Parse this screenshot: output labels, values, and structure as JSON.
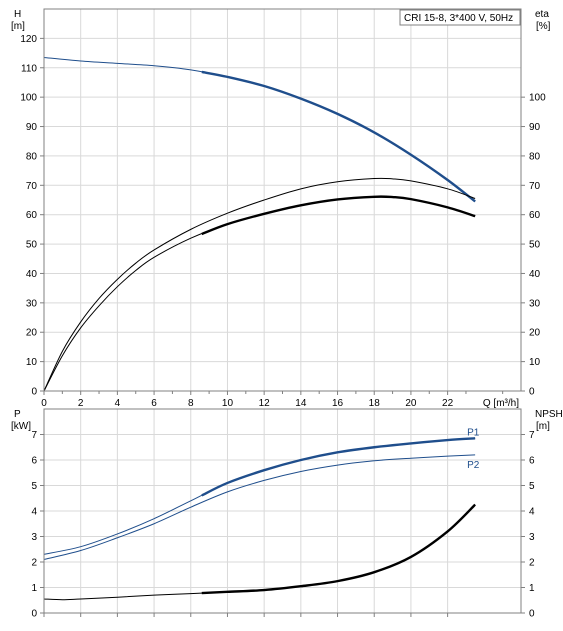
{
  "chart_data": [
    {
      "type": "line",
      "legend": "CRI 15-8, 3*400 V, 50Hz",
      "left_axis": {
        "symbol": "H",
        "unit": "[m]",
        "ylim": [
          0,
          130
        ],
        "ticks": [
          0,
          10,
          20,
          30,
          40,
          50,
          60,
          70,
          80,
          90,
          100,
          110,
          120
        ]
      },
      "right_axis": {
        "symbol": "eta",
        "unit": "[%]",
        "ylim": [
          0,
          130
        ],
        "ticks": [
          0,
          10,
          20,
          30,
          40,
          50,
          60,
          70,
          80,
          90,
          100
        ]
      },
      "x_axis": {
        "label": "Q [m³/h]",
        "xlim": [
          0,
          26
        ],
        "ticks": [
          0,
          2,
          4,
          6,
          8,
          10,
          12,
          14,
          16,
          18,
          20,
          22
        ]
      },
      "grid": true,
      "series": [
        {
          "axis": "left",
          "color": "#1f4e8c",
          "points": [
            [
              0,
              113.5
            ],
            [
              2,
              112.3
            ],
            [
              4,
              111.5
            ],
            [
              6,
              110.7
            ],
            [
              8,
              109.3
            ],
            [
              10,
              106.9
            ],
            [
              12,
              103.8
            ],
            [
              14,
              99.5
            ],
            [
              16,
              94.3
            ],
            [
              18,
              88.0
            ],
            [
              20,
              80.4
            ],
            [
              22,
              71.8
            ],
            [
              23.5,
              64.5
            ]
          ],
          "bold_from": 8.6
        },
        {
          "axis": "right",
          "color": "#000000",
          "points": [
            [
              0,
              0
            ],
            [
              1,
              12
            ],
            [
              2,
              21.5
            ],
            [
              3,
              29
            ],
            [
              4,
              35.5
            ],
            [
              5,
              41
            ],
            [
              6,
              45.5
            ],
            [
              8,
              52
            ],
            [
              10,
              56.8
            ],
            [
              12,
              60.3
            ],
            [
              14,
              63.2
            ],
            [
              16,
              65.2
            ],
            [
              18,
              66.1
            ],
            [
              19,
              66
            ],
            [
              20,
              65.3
            ],
            [
              22,
              62.5
            ],
            [
              23.5,
              59.5
            ]
          ],
          "bold_from": 8.6
        },
        {
          "axis": "right",
          "color": "#000000",
          "points": [
            [
              0,
              0
            ],
            [
              1,
              13.5
            ],
            [
              2,
              23.5
            ],
            [
              3,
              31.5
            ],
            [
              4,
              38
            ],
            [
              5,
              43.5
            ],
            [
              6,
              48
            ],
            [
              8,
              55
            ],
            [
              10,
              60.5
            ],
            [
              12,
              65
            ],
            [
              14,
              68.8
            ],
            [
              16,
              71.2
            ],
            [
              18,
              72.3
            ],
            [
              19,
              72.2
            ],
            [
              20,
              71.5
            ],
            [
              22,
              68.8
            ],
            [
              23.5,
              65.5
            ]
          ]
        }
      ]
    },
    {
      "type": "line",
      "left_axis": {
        "symbol": "P",
        "unit": "[kW]",
        "ylim": [
          0,
          8
        ],
        "ticks": [
          0,
          1,
          2,
          3,
          4,
          5,
          6,
          7
        ]
      },
      "right_axis": {
        "symbol": "NPSH",
        "unit": "[m]",
        "ylim": [
          0,
          8
        ],
        "ticks": [
          0,
          1,
          2,
          3,
          4,
          5,
          6,
          7
        ]
      },
      "x_axis": {
        "xlim": [
          0,
          26
        ],
        "ticks": [
          0,
          2,
          4,
          6,
          8,
          10,
          12,
          14,
          16,
          18,
          20,
          22
        ]
      },
      "grid": true,
      "series": [
        {
          "name": "P1",
          "axis": "left",
          "color": "#1f4e8c",
          "points": [
            [
              0,
              2.3
            ],
            [
              2,
              2.6
            ],
            [
              4,
              3.1
            ],
            [
              6,
              3.7
            ],
            [
              8,
              4.4
            ],
            [
              10,
              5.1
            ],
            [
              12,
              5.6
            ],
            [
              14,
              6.0
            ],
            [
              16,
              6.3
            ],
            [
              18,
              6.5
            ],
            [
              20,
              6.65
            ],
            [
              22,
              6.78
            ],
            [
              23.5,
              6.85
            ]
          ],
          "bold_from": 8.6
        },
        {
          "name": "P2",
          "axis": "left",
          "color": "#1f4e8c",
          "points": [
            [
              0,
              2.1
            ],
            [
              2,
              2.45
            ],
            [
              4,
              2.95
            ],
            [
              6,
              3.5
            ],
            [
              8,
              4.15
            ],
            [
              10,
              4.75
            ],
            [
              12,
              5.2
            ],
            [
              14,
              5.55
            ],
            [
              16,
              5.8
            ],
            [
              18,
              5.97
            ],
            [
              20,
              6.07
            ],
            [
              22,
              6.15
            ],
            [
              23.5,
              6.2
            ]
          ]
        },
        {
          "axis": "right",
          "color": "#000000",
          "points": [
            [
              0,
              0.55
            ],
            [
              1,
              0.52
            ],
            [
              2,
              0.55
            ],
            [
              4,
              0.62
            ],
            [
              6,
              0.7
            ],
            [
              8,
              0.76
            ],
            [
              10,
              0.83
            ],
            [
              12,
              0.9
            ],
            [
              14,
              1.05
            ],
            [
              16,
              1.25
            ],
            [
              18,
              1.6
            ],
            [
              20,
              2.2
            ],
            [
              22,
              3.2
            ],
            [
              23.5,
              4.25
            ]
          ],
          "bold_from": 8.6
        }
      ]
    }
  ]
}
